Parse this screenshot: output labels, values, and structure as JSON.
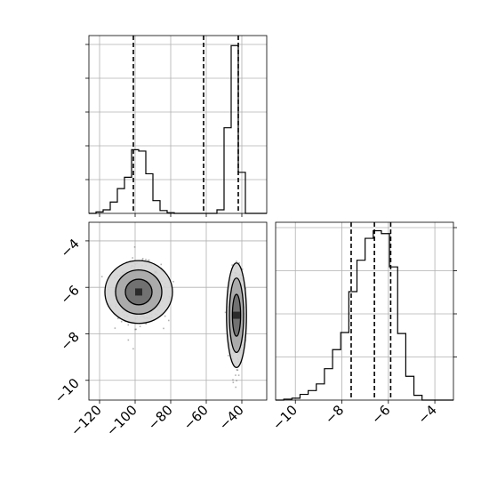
{
  "chart_data": [
    {
      "type": "histogram",
      "panel": "marginal-x",
      "xlim": [
        -126,
        -26
      ],
      "bin_edges": [
        -126,
        -122,
        -118,
        -114,
        -110,
        -106,
        -102,
        -98,
        -94,
        -90,
        -86,
        -82,
        -78,
        -74,
        -70,
        -66,
        -62,
        -58,
        -54,
        -50,
        -46,
        -42,
        -38,
        -34,
        -30,
        -26
      ],
      "counts": [
        0,
        2,
        5,
        16,
        35,
        51,
        90,
        88,
        56,
        18,
        4,
        1,
        0,
        0,
        0,
        0,
        0,
        0,
        5,
        121,
        237,
        58,
        0,
        0,
        0
      ],
      "quantile_lines": [
        -101,
        -61.5,
        -42
      ],
      "xticks": [
        -120,
        -100,
        -80,
        -60,
        -40
      ],
      "grid": true
    },
    {
      "type": "scatter-density",
      "panel": "joint",
      "xlim": [
        -126,
        -26
      ],
      "ylim": [
        -10.85,
        -3.2
      ],
      "xticks": [
        -120,
        -100,
        -80,
        -60,
        -40
      ],
      "xtick_labels": [
        "−120",
        "−100",
        "−80",
        "−60",
        "−40"
      ],
      "yticks": [
        -4,
        -6,
        -8,
        -10
      ],
      "ytick_labels": [
        "−4",
        "−6",
        "−8",
        "−10"
      ],
      "clusters": [
        {
          "center": [
            -98,
            -6.2
          ],
          "spread": [
            11,
            0.8
          ],
          "n_points": 650
        },
        {
          "center": [
            -43,
            -7.2
          ],
          "spread": [
            3.2,
            1.3
          ],
          "n_points": 560
        }
      ],
      "contours": [
        {
          "center": [
            -98,
            -6.2
          ],
          "radii": [
            [
              19,
              1.35
            ],
            [
              13,
              0.95
            ],
            [
              7.5,
              0.55
            ]
          ]
        },
        {
          "center": [
            -43,
            -7.2
          ],
          "radii": [
            [
              5.6,
              2.25
            ],
            [
              4.0,
              1.6
            ],
            [
              2.3,
              0.9
            ]
          ]
        }
      ],
      "grid": true
    },
    {
      "type": "histogram",
      "panel": "marginal-y",
      "xlim": [
        -10.85,
        -3.2
      ],
      "bin_edges": [
        -10.85,
        -10.5,
        -10.15,
        -9.8,
        -9.45,
        -9.1,
        -8.75,
        -8.4,
        -8.05,
        -7.7,
        -7.35,
        -7.0,
        -6.65,
        -6.3,
        -5.95,
        -5.6,
        -5.25,
        -4.9,
        -4.55,
        -4.2,
        -3.85,
        -3.5,
        -3.2
      ],
      "counts": [
        0,
        1,
        2,
        6,
        10,
        17,
        33,
        53,
        71,
        114,
        147,
        170,
        178,
        175,
        140,
        70,
        25,
        5,
        0,
        0,
        0,
        0
      ],
      "quantile_lines": [
        -7.6,
        -6.6,
        -5.9
      ],
      "xticks": [
        -10,
        -8,
        -6,
        -4
      ],
      "xtick_labels": [
        "−10",
        "−8",
        "−6",
        "−4"
      ],
      "grid": true
    }
  ]
}
